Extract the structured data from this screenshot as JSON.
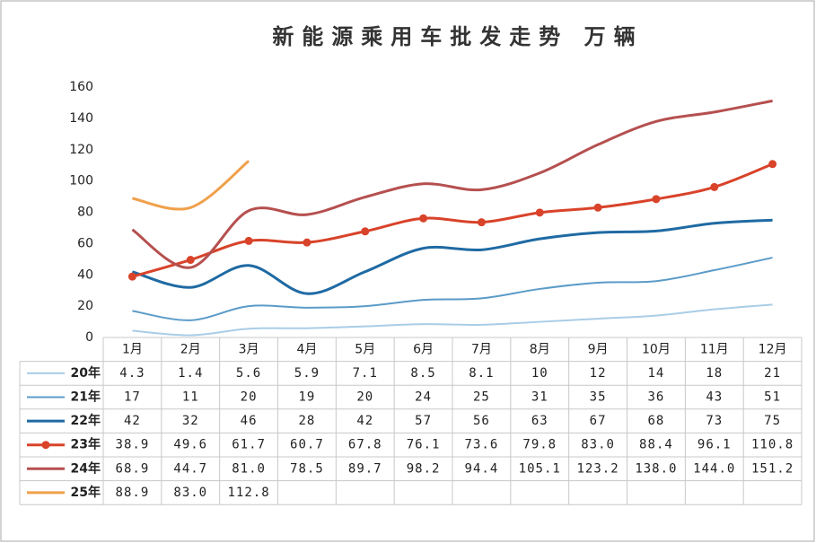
{
  "chart_data": {
    "type": "line",
    "title": "新能源乘用车批发走势  万辆",
    "categories": [
      "1月",
      "2月",
      "3月",
      "4月",
      "5月",
      "6月",
      "7月",
      "8月",
      "9月",
      "10月",
      "11月",
      "12月"
    ],
    "ylim": [
      0,
      160
    ],
    "yticks": [
      0,
      20,
      40,
      60,
      80,
      100,
      120,
      140,
      160
    ],
    "series": [
      {
        "name": "20年",
        "color": "#a9cde6",
        "values": [
          4.3,
          1.4,
          5.6,
          5.9,
          7.1,
          8.5,
          8.1,
          10,
          12,
          14,
          18,
          21
        ]
      },
      {
        "name": "21年",
        "color": "#5b9bc8",
        "values": [
          17,
          11,
          20,
          19,
          20,
          24,
          25,
          31,
          35,
          36,
          43,
          51
        ]
      },
      {
        "name": "22年",
        "color": "#1f6aa3",
        "values": [
          42,
          32,
          46,
          28,
          42,
          57,
          56,
          63,
          67,
          68,
          73,
          75
        ]
      },
      {
        "name": "23年",
        "color": "#d8432a",
        "markers": true,
        "values": [
          38.9,
          49.6,
          61.7,
          60.7,
          67.8,
          76.1,
          73.6,
          79.8,
          83.0,
          88.4,
          96.1,
          110.8
        ],
        "value_labels": [
          "38.9",
          "49.6",
          "61.7",
          "60.7",
          "67.8",
          "76.1",
          "73.6",
          "79.8",
          "83.0",
          "88.4",
          "96.1",
          "110.8"
        ]
      },
      {
        "name": "24年",
        "color": "#b5504f",
        "values": [
          68.9,
          44.7,
          81.0,
          78.5,
          89.7,
          98.2,
          94.4,
          105.1,
          123.2,
          138.0,
          144.0,
          151.2
        ],
        "value_labels": [
          "68.9",
          "44.7",
          "81.0",
          "78.5",
          "89.7",
          "98.2",
          "94.4",
          "105.1",
          "123.2",
          "138.0",
          "144.0",
          "151.2"
        ]
      },
      {
        "name": "25年",
        "color": "#f0a04b",
        "values": [
          88.9,
          83.0,
          112.8,
          null,
          null,
          null,
          null,
          null,
          null,
          null,
          null,
          null
        ],
        "value_labels": [
          "88.9",
          "83.0",
          "112.8",
          null,
          null,
          null,
          null,
          null,
          null,
          null,
          null,
          null
        ]
      }
    ]
  }
}
